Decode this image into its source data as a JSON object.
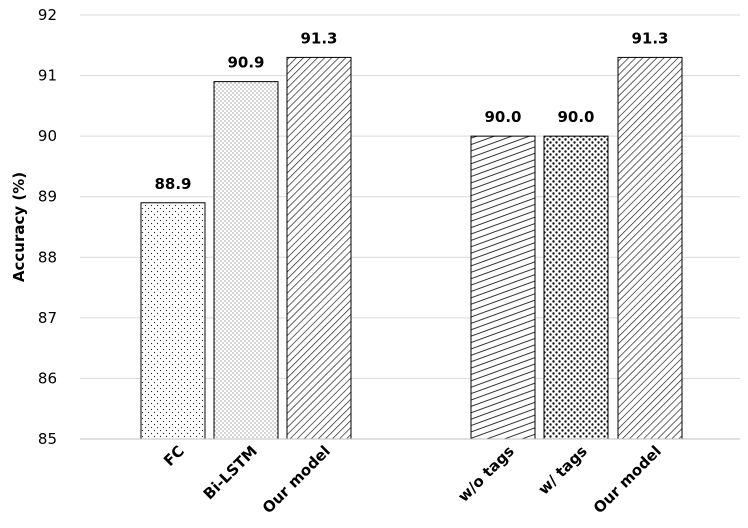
{
  "chart_data": {
    "type": "bar",
    "ylabel": "Accuracy (%)",
    "xlabel": "",
    "ylim": [
      85,
      92
    ],
    "yticks": [
      "85",
      "86",
      "87",
      "88",
      "89",
      "90",
      "91",
      "92"
    ],
    "grid": true,
    "categories": [
      "FC",
      "Bi-LSTM",
      "Our model",
      "w/o tags",
      "w/ tags",
      "Our model"
    ],
    "values": [
      88.9,
      90.9,
      91.3,
      90.0,
      90.0,
      91.3
    ],
    "value_labels": [
      "88.9",
      "90.9",
      "91.3",
      "90.0",
      "90.0",
      "91.3"
    ],
    "groups": [
      {
        "bars": [
          0,
          1,
          2
        ]
      },
      {
        "bars": [
          3,
          4,
          5
        ]
      }
    ],
    "patterns": [
      "fine-dots",
      "dense-dots",
      "diagonal-hatch",
      "horizontal-dash",
      "coarse-dots",
      "diagonal-hatch"
    ]
  }
}
